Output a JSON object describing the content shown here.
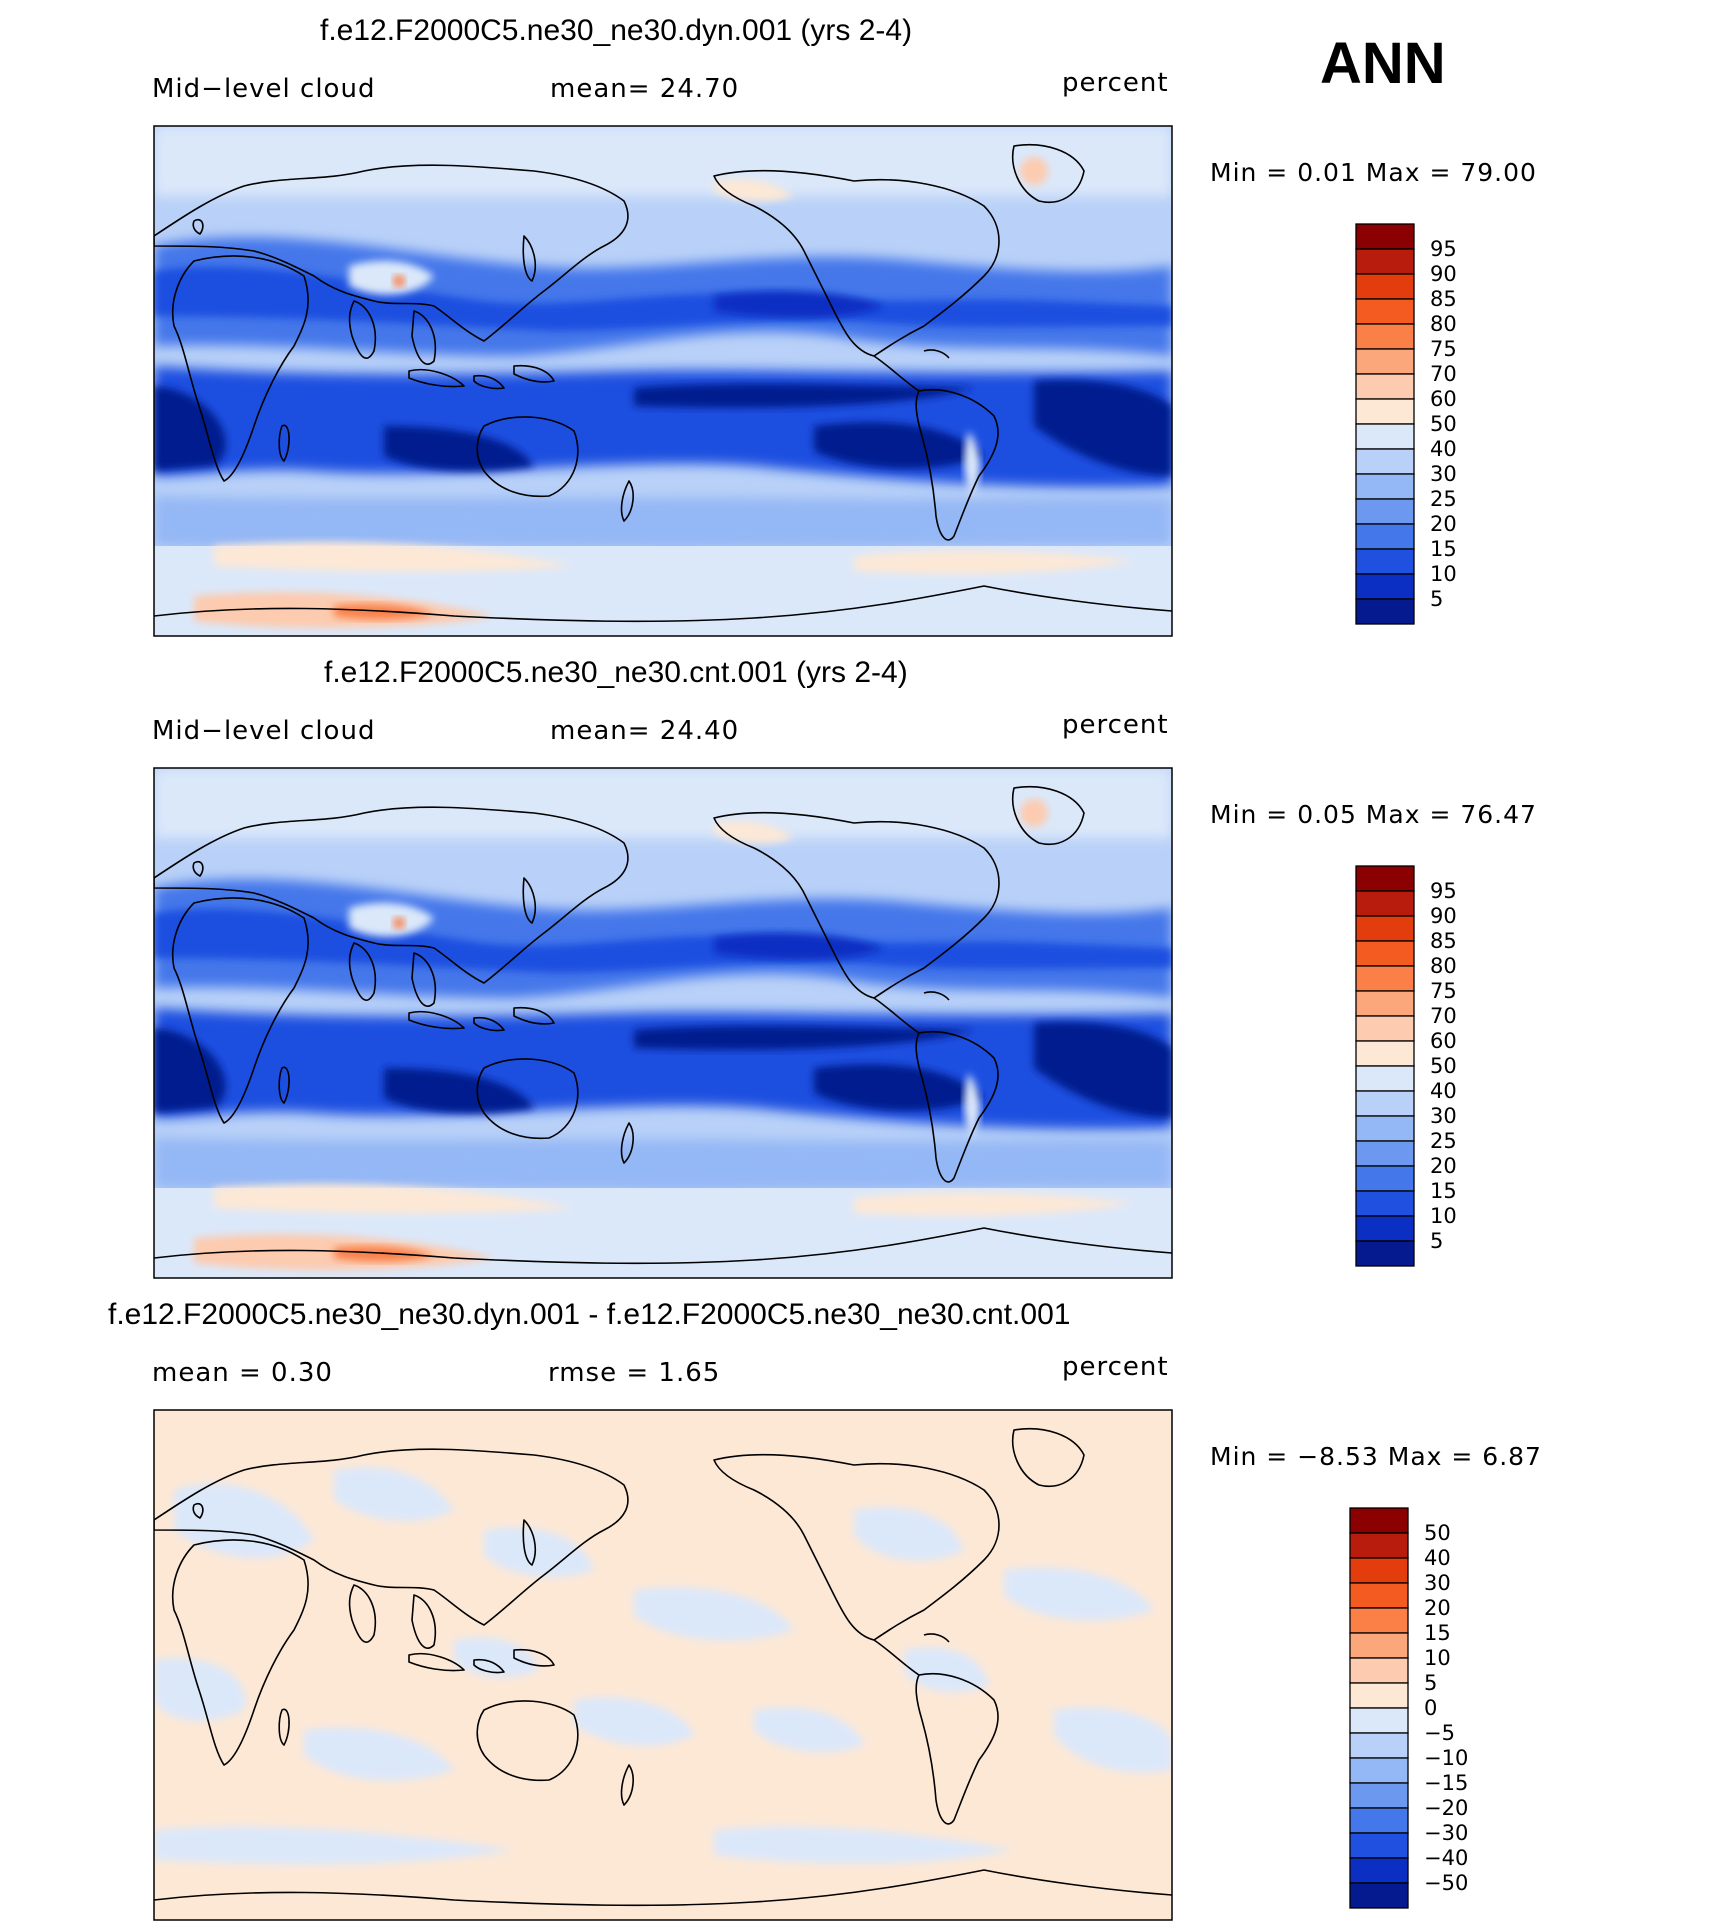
{
  "season": "ANN",
  "panels": [
    {
      "title": "f.e12.F2000C5.ne30_ne30.dyn.001 (yrs 2-4)",
      "left_label": "Mid−level  cloud",
      "center_label": "mean=   24.70",
      "units": "percent",
      "minmax": "Min  =     0.01  Max  =    79.00"
    },
    {
      "title": "f.e12.F2000C5.ne30_ne30.cnt.001 (yrs 2-4)",
      "left_label": "Mid−level  cloud",
      "center_label": "mean=   24.40",
      "units": "percent",
      "minmax": "Min  =     0.05  Max  =    76.47"
    },
    {
      "title": "f.e12.F2000C5.ne30_ne30.dyn.001 - f.e12.F2000C5.ne30_ne30.cnt.001",
      "left_label": "mean  =     0.30",
      "center_label": "rmse  =     1.65",
      "units": "percent",
      "minmax": "Min  =   −8.53  Max  =      6.87"
    }
  ],
  "chart_data": [
    {
      "type": "heatmap",
      "title": "f.e12.F2000C5.ne30_ne30.dyn.001 (yrs 2-4)",
      "variable": "Mid-level cloud",
      "units": "percent",
      "mean": 24.7,
      "min": 0.01,
      "max": 79.0,
      "colorbar_levels": [
        "95",
        "90",
        "85",
        "80",
        "75",
        "70",
        "60",
        "50",
        "40",
        "30",
        "25",
        "20",
        "15",
        "10",
        "5"
      ],
      "colorbar_colors": [
        "#8b0000",
        "#b71c0c",
        "#e33c0d",
        "#f45b20",
        "#fa8048",
        "#fca67b",
        "#fdcbaf",
        "#fde8d6",
        "#dbe8fa",
        "#b9d1f8",
        "#94b7f5",
        "#6c98f0",
        "#4477ea",
        "#1f50e0",
        "#0a2fc2",
        "#041a8e"
      ]
    },
    {
      "type": "heatmap",
      "title": "f.e12.F2000C5.ne30_ne30.cnt.001 (yrs 2-4)",
      "variable": "Mid-level cloud",
      "units": "percent",
      "mean": 24.4,
      "min": 0.05,
      "max": 76.47,
      "colorbar_levels": [
        "95",
        "90",
        "85",
        "80",
        "75",
        "70",
        "60",
        "50",
        "40",
        "30",
        "25",
        "20",
        "15",
        "10",
        "5"
      ],
      "colorbar_colors": [
        "#8b0000",
        "#b71c0c",
        "#e33c0d",
        "#f45b20",
        "#fa8048",
        "#fca67b",
        "#fdcbaf",
        "#fde8d6",
        "#dbe8fa",
        "#b9d1f8",
        "#94b7f5",
        "#6c98f0",
        "#4477ea",
        "#1f50e0",
        "#0a2fc2",
        "#041a8e"
      ]
    },
    {
      "type": "heatmap",
      "title": "f.e12.F2000C5.ne30_ne30.dyn.001 - f.e12.F2000C5.ne30_ne30.cnt.001",
      "units": "percent",
      "mean": 0.3,
      "rmse": 1.65,
      "min": -8.53,
      "max": 6.87,
      "colorbar_levels": [
        "50",
        "40",
        "30",
        "20",
        "15",
        "10",
        "5",
        "0",
        "−5",
        "−10",
        "−15",
        "−20",
        "−30",
        "−40",
        "−50"
      ],
      "colorbar_colors": [
        "#8b0000",
        "#b71c0c",
        "#e33c0d",
        "#f45b20",
        "#fa8048",
        "#fca67b",
        "#fdcbaf",
        "#fde8d6",
        "#dbe8fa",
        "#b9d1f8",
        "#94b7f5",
        "#6c98f0",
        "#4477ea",
        "#1f50e0",
        "#0a2fc2",
        "#041a8e"
      ]
    }
  ]
}
